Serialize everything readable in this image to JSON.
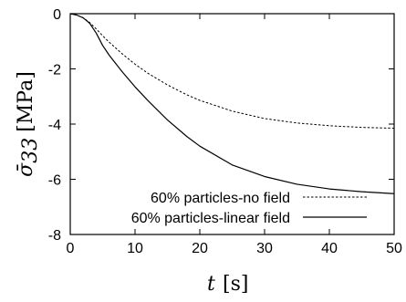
{
  "chart_data": {
    "type": "line",
    "xlabel": {
      "symbol": "t",
      "unit": "[s]"
    },
    "ylabel": {
      "symbol": "σ̄",
      "subscript": "33",
      "unit": "[MPa]"
    },
    "xlim": [
      0,
      50
    ],
    "ylim": [
      -8,
      0
    ],
    "xticks": [
      0,
      10,
      20,
      30,
      40,
      50
    ],
    "yticks": [
      0,
      -2,
      -4,
      -6,
      -8
    ],
    "xtick_labels": [
      "0",
      "10",
      "20",
      "30",
      "40",
      "50"
    ],
    "ytick_labels": [
      "0",
      "-2",
      "-4",
      "-6",
      "-8"
    ],
    "grid": false,
    "legend_position": "bottom-right",
    "series": [
      {
        "name": "60% particles-no field",
        "style": "dashed",
        "color": "#000000",
        "x": [
          0,
          1,
          2,
          3,
          4,
          5,
          6,
          8,
          10,
          12,
          15,
          18,
          20,
          25,
          30,
          35,
          40,
          45,
          50
        ],
        "y": [
          0,
          -0.05,
          -0.15,
          -0.32,
          -0.55,
          -0.8,
          -1.03,
          -1.45,
          -1.83,
          -2.16,
          -2.58,
          -2.94,
          -3.14,
          -3.53,
          -3.8,
          -3.96,
          -4.06,
          -4.12,
          -4.15
        ]
      },
      {
        "name": "60% particles-linear field",
        "style": "solid",
        "color": "#000000",
        "x": [
          0,
          1,
          2,
          3,
          4,
          5,
          6,
          8,
          10,
          12,
          15,
          18,
          20,
          25,
          30,
          35,
          40,
          45,
          50
        ],
        "y": [
          0,
          -0.05,
          -0.15,
          -0.35,
          -0.7,
          -1.15,
          -1.5,
          -2.1,
          -2.65,
          -3.15,
          -3.85,
          -4.45,
          -4.8,
          -5.48,
          -5.9,
          -6.18,
          -6.35,
          -6.45,
          -6.52
        ]
      }
    ]
  }
}
